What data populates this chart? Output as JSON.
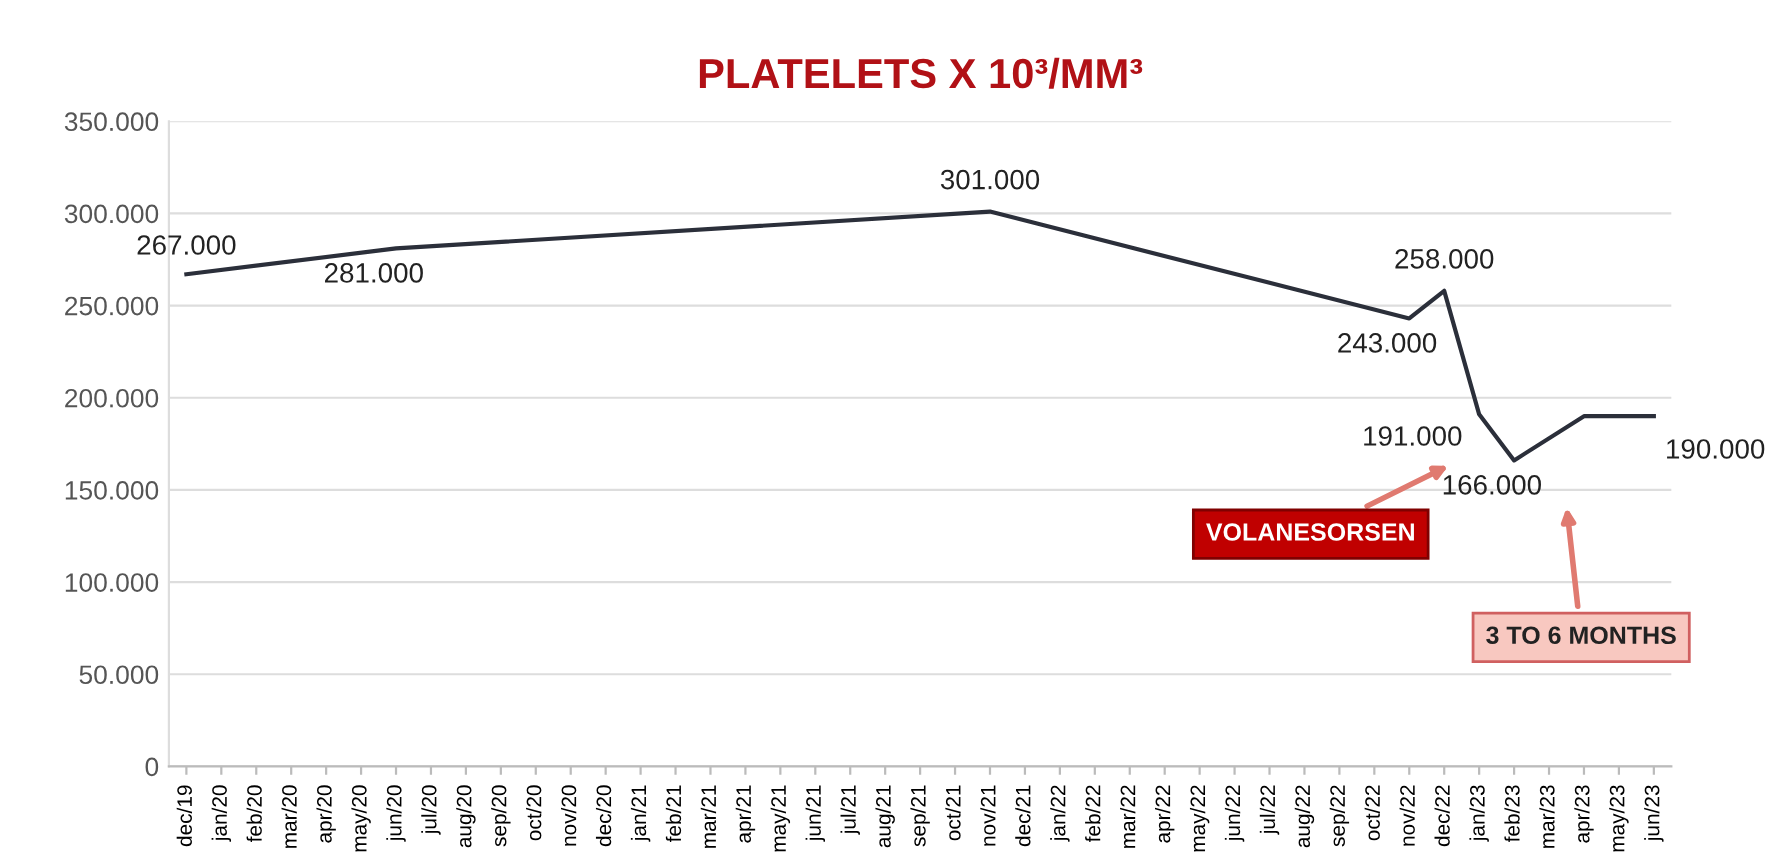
{
  "chart_data": {
    "type": "line",
    "title": "PLATELETS X 10³/MM³",
    "categories": [
      "dec/19",
      "jan/20",
      "feb/20",
      "mar/20",
      "apr/20",
      "may/20",
      "jun/20",
      "jul/20",
      "aug/20",
      "sep/20",
      "oct/20",
      "nov/20",
      "dec/20",
      "jan/21",
      "feb/21",
      "mar/21",
      "apr/21",
      "may/21",
      "jun/21",
      "jul/21",
      "aug/21",
      "sep/21",
      "oct/21",
      "nov/21",
      "dec/21",
      "jan/22",
      "feb/22",
      "mar/22",
      "apr/22",
      "may/22",
      "jun/22",
      "jul/22",
      "aug/22",
      "sep/22",
      "oct/22",
      "nov/22",
      "dec/22",
      "jan/23",
      "feb/23",
      "mar/23",
      "apr/23",
      "may/23",
      "jun/23"
    ],
    "series": [
      {
        "color": "#2b2f3a",
        "values": [
          267000,
          null,
          null,
          null,
          null,
          null,
          281000,
          null,
          null,
          null,
          null,
          null,
          null,
          null,
          null,
          null,
          null,
          null,
          null,
          null,
          null,
          null,
          null,
          301000,
          null,
          null,
          null,
          null,
          null,
          null,
          null,
          null,
          null,
          null,
          null,
          243000,
          258000,
          191000,
          166000,
          null,
          190000,
          null,
          190000
        ],
        "value_labels": [
          "267.000",
          null,
          null,
          null,
          null,
          null,
          "281.000",
          null,
          null,
          null,
          null,
          null,
          null,
          null,
          null,
          null,
          null,
          null,
          null,
          null,
          null,
          null,
          null,
          "301.000",
          null,
          null,
          null,
          null,
          null,
          null,
          null,
          null,
          null,
          null,
          null,
          "243.000",
          "258.000",
          "191.000",
          "166.000",
          null,
          null,
          null,
          "190.000"
        ]
      }
    ],
    "ylim": [
      0,
      350000
    ],
    "yticks": [
      {
        "value": 0,
        "label": "0"
      },
      {
        "value": 50000,
        "label": "50.000"
      },
      {
        "value": 100000,
        "label": "100.000"
      },
      {
        "value": 150000,
        "label": "150.000"
      },
      {
        "value": 200000,
        "label": "200.000"
      },
      {
        "value": 250000,
        "label": "250.000"
      },
      {
        "value": 300000,
        "label": "300.000"
      },
      {
        "value": 350000,
        "label": "350.000"
      }
    ],
    "grid": "y",
    "marker": "none",
    "line_style": "solid",
    "annotations": [
      "VOLANESORSEN",
      "3 TO 6 MONTHS"
    ]
  }
}
